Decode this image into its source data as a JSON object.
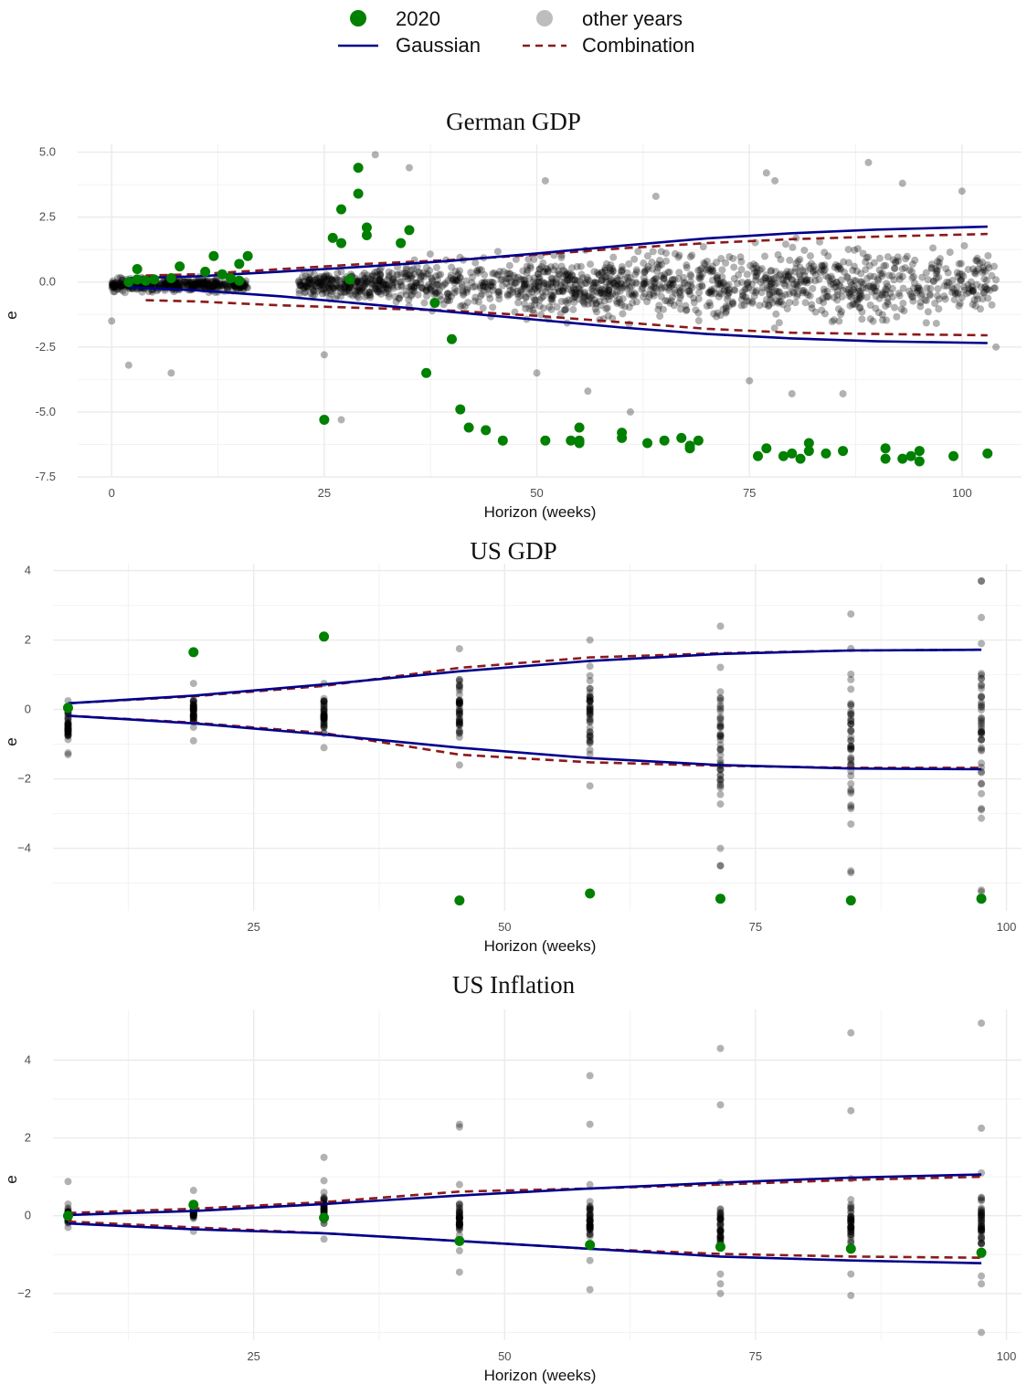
{
  "legend": {
    "items": [
      {
        "label": "2020",
        "kind": "point",
        "color": "#008000"
      },
      {
        "label": "other years",
        "kind": "point",
        "color": "#bdbdbd"
      },
      {
        "label": "Gaussian",
        "kind": "line",
        "color": "#00008b"
      },
      {
        "label": "Combination",
        "kind": "dashed",
        "color": "#8b1a1a"
      }
    ]
  },
  "colors": {
    "highlight": "#008000",
    "other": "#000000",
    "gaussian": "#00008b",
    "combination": "#8b1a1a",
    "grid": "#ebebeb"
  },
  "chart_data": [
    {
      "type": "scatter",
      "title": "German GDP",
      "xlabel": "Horizon (weeks)",
      "ylabel": "e",
      "xlim": [
        -4,
        107
      ],
      "ylim": [
        -7.5,
        5.3
      ],
      "xticks": [
        0,
        25,
        50,
        75,
        100
      ],
      "xtick_labels": [
        "0",
        "25",
        "50",
        "75",
        "100"
      ],
      "yticks": [
        -7.5,
        -5.0,
        -2.5,
        0.0,
        2.5,
        5.0
      ],
      "ytick_labels": [
        "-7.5",
        "-5.0",
        "-2.5",
        "0.0",
        "2.5",
        "5.0"
      ],
      "grid": true,
      "series": [
        {
          "name": "2020",
          "points": [
            [
              2,
              0.0
            ],
            [
              3,
              0.5
            ],
            [
              3,
              0.1
            ],
            [
              4,
              0.05
            ],
            [
              5,
              0.1
            ],
            [
              7,
              0.15
            ],
            [
              8,
              0.6
            ],
            [
              11,
              0.4
            ],
            [
              12,
              1.0
            ],
            [
              13,
              0.3
            ],
            [
              14,
              0.15
            ],
            [
              15,
              0.05
            ],
            [
              15,
              0.7
            ],
            [
              16,
              1.0
            ],
            [
              25,
              -5.3
            ],
            [
              26,
              1.7
            ],
            [
              27,
              2.8
            ],
            [
              27,
              1.5
            ],
            [
              28,
              0.1
            ],
            [
              29,
              4.4
            ],
            [
              29,
              3.4
            ],
            [
              30,
              2.1
            ],
            [
              30,
              1.8
            ],
            [
              34,
              1.5
            ],
            [
              35,
              2.0
            ],
            [
              37,
              -3.5
            ],
            [
              38,
              -0.8
            ],
            [
              40,
              -2.2
            ],
            [
              41,
              -4.9
            ],
            [
              42,
              -5.6
            ],
            [
              44,
              -5.7
            ],
            [
              46,
              -6.1
            ],
            [
              51,
              -6.1
            ],
            [
              54,
              -6.1
            ],
            [
              55,
              -6.1
            ],
            [
              55,
              -5.6
            ],
            [
              55,
              -6.2
            ],
            [
              60,
              -5.8
            ],
            [
              60,
              -6.0
            ],
            [
              63,
              -6.2
            ],
            [
              65,
              -6.1
            ],
            [
              67,
              -6.0
            ],
            [
              68,
              -6.3
            ],
            [
              68,
              -6.4
            ],
            [
              69,
              -6.1
            ],
            [
              76,
              -6.7
            ],
            [
              77,
              -6.4
            ],
            [
              79,
              -6.7
            ],
            [
              80,
              -6.6
            ],
            [
              81,
              -6.8
            ],
            [
              82,
              -6.5
            ],
            [
              82,
              -6.2
            ],
            [
              84,
              -6.6
            ],
            [
              86,
              -6.5
            ],
            [
              91,
              -6.8
            ],
            [
              91,
              -6.4
            ],
            [
              93,
              -6.8
            ],
            [
              94,
              -6.7
            ],
            [
              95,
              -6.9
            ],
            [
              95,
              -6.5
            ],
            [
              99,
              -6.7
            ],
            [
              103,
              -6.6
            ]
          ]
        },
        {
          "name": "other years",
          "x_range": [
            0,
            104
          ],
          "note_points": [
            [
              0,
              -1.5
            ],
            [
              2,
              -3.2
            ],
            [
              7,
              -3.5
            ],
            [
              25,
              -2.8
            ],
            [
              27,
              -5.3
            ],
            [
              31,
              4.9
            ],
            [
              35,
              4.4
            ],
            [
              50,
              -3.5
            ],
            [
              51,
              3.9
            ],
            [
              56,
              -4.2
            ],
            [
              61,
              -5.0
            ],
            [
              64,
              3.3
            ],
            [
              75,
              -3.8
            ],
            [
              77,
              4.2
            ],
            [
              78,
              3.9
            ],
            [
              80,
              -4.3
            ],
            [
              86,
              -4.3
            ],
            [
              89,
              4.6
            ],
            [
              93,
              3.8
            ],
            [
              100,
              3.5
            ],
            [
              103,
              -6.6
            ],
            [
              104,
              -2.5
            ]
          ]
        }
      ],
      "bands": {
        "gaussian": {
          "x": [
            2,
            10,
            20,
            30,
            40,
            50,
            60,
            70,
            80,
            90,
            103
          ],
          "upper": [
            0.15,
            0.22,
            0.4,
            0.6,
            0.82,
            1.1,
            1.4,
            1.68,
            1.88,
            2.02,
            2.13
          ],
          "lower": [
            -0.2,
            -0.32,
            -0.55,
            -0.85,
            -1.15,
            -1.45,
            -1.75,
            -2.0,
            -2.17,
            -2.28,
            -2.35
          ]
        },
        "combination": {
          "x": [
            4,
            10,
            20,
            30,
            40,
            50,
            60,
            70,
            80,
            90,
            103
          ],
          "upper": [
            0.25,
            0.3,
            0.5,
            0.7,
            0.85,
            1.05,
            1.3,
            1.5,
            1.65,
            1.75,
            1.85
          ],
          "lower": [
            -0.7,
            -0.75,
            -0.9,
            -1.0,
            -1.1,
            -1.3,
            -1.55,
            -1.8,
            -1.95,
            -2.0,
            -2.05
          ]
        }
      }
    },
    {
      "type": "scatter",
      "title": "US GDP",
      "xlabel": "Horizon (weeks)",
      "ylabel": "e",
      "xlim": [
        5,
        101.5
      ],
      "ylim": [
        -5.8,
        4.2
      ],
      "xticks": [
        25,
        50,
        75,
        100
      ],
      "xtick_labels": [
        "25",
        "50",
        "75",
        "100"
      ],
      "yticks": [
        -4,
        -2,
        0,
        2,
        4
      ],
      "ytick_labels": [
        "−4",
        "−2",
        "0",
        "2",
        "4"
      ],
      "grid": true,
      "x_positions": [
        6.5,
        19,
        32,
        45.5,
        58.5,
        71.5,
        84.5,
        97.5
      ],
      "series": [
        {
          "name": "2020",
          "points": [
            [
              6.5,
              0.05
            ],
            [
              19,
              1.65
            ],
            [
              32,
              2.1
            ],
            [
              45.5,
              -5.5
            ],
            [
              58.5,
              -5.3
            ],
            [
              71.5,
              -5.45
            ],
            [
              84.5,
              -5.5
            ],
            [
              97.5,
              -5.45
            ]
          ]
        },
        {
          "name": "other years",
          "ranges": [
            [
              6.5,
              -1.3,
              0.25
            ],
            [
              19,
              -0.9,
              0.75
            ],
            [
              32,
              -1.1,
              0.75
            ],
            [
              45.5,
              -1.6,
              1.75
            ],
            [
              58.5,
              -2.2,
              2.0
            ],
            [
              71.5,
              -4.5,
              2.4
            ],
            [
              84.5,
              -4.7,
              2.75
            ],
            [
              97.5,
              -5.2,
              3.7
            ]
          ],
          "outliers": [
            [
              6.5,
              -1.25
            ],
            [
              71.5,
              -4.0
            ],
            [
              71.5,
              -4.5
            ],
            [
              84.5,
              -3.3
            ],
            [
              84.5,
              -4.65
            ],
            [
              97.5,
              -5.25
            ],
            [
              97.5,
              3.7
            ],
            [
              97.5,
              2.65
            ]
          ]
        }
      ],
      "bands": {
        "gaussian": {
          "x": [
            6.5,
            19,
            32,
            45.5,
            58.5,
            71.5,
            84.5,
            97.5
          ],
          "upper": [
            0.18,
            0.4,
            0.72,
            1.1,
            1.4,
            1.6,
            1.7,
            1.72
          ],
          "lower": [
            -0.18,
            -0.4,
            -0.72,
            -1.1,
            -1.4,
            -1.6,
            -1.7,
            -1.72
          ]
        },
        "combination": {
          "x": [
            6.5,
            19,
            32,
            45.5,
            58.5,
            71.5,
            84.5,
            97.5
          ],
          "upper": [
            0.18,
            0.38,
            0.68,
            1.2,
            1.5,
            1.62,
            1.7,
            1.72
          ],
          "lower": [
            -0.18,
            -0.38,
            -0.68,
            -1.3,
            -1.52,
            -1.62,
            -1.68,
            -1.68
          ]
        }
      }
    },
    {
      "type": "scatter",
      "title": "US Inflation",
      "xlabel": "Horizon (weeks)",
      "ylabel": "e",
      "xlim": [
        5,
        101.5
      ],
      "ylim": [
        -3.2,
        5.3
      ],
      "xticks": [
        25,
        50,
        75,
        100
      ],
      "xtick_labels": [
        "25",
        "50",
        "75",
        "100"
      ],
      "yticks": [
        -2,
        0,
        2,
        4
      ],
      "ytick_labels": [
        "−2",
        "0",
        "2",
        "4"
      ],
      "grid": true,
      "x_positions": [
        6.5,
        19,
        32,
        45.5,
        58.5,
        71.5,
        84.5,
        97.5
      ],
      "series": [
        {
          "name": "2020",
          "points": [
            [
              6.5,
              0.0
            ],
            [
              19,
              0.28
            ],
            [
              32,
              -0.05
            ],
            [
              45.5,
              -0.65
            ],
            [
              58.5,
              -0.75
            ],
            [
              71.5,
              -0.8
            ],
            [
              84.5,
              -0.85
            ],
            [
              97.5,
              -0.95
            ]
          ]
        },
        {
          "name": "other years",
          "ranges": [
            [
              6.5,
              -0.3,
              0.3
            ],
            [
              19,
              -0.4,
              0.65
            ],
            [
              32,
              -0.6,
              0.9
            ],
            [
              45.5,
              -0.9,
              0.8
            ],
            [
              58.5,
              -1.15,
              0.8
            ],
            [
              71.5,
              -1.5,
              0.85
            ],
            [
              84.5,
              -1.5,
              0.95
            ],
            [
              97.5,
              -1.55,
              1.1
            ]
          ],
          "outliers": [
            [
              6.5,
              0.88
            ],
            [
              32,
              1.5
            ],
            [
              45.5,
              2.35
            ],
            [
              45.5,
              2.28
            ],
            [
              45.5,
              -1.45
            ],
            [
              58.5,
              3.6
            ],
            [
              58.5,
              2.35
            ],
            [
              58.5,
              -1.9
            ],
            [
              71.5,
              4.3
            ],
            [
              71.5,
              2.85
            ],
            [
              71.5,
              -1.75
            ],
            [
              71.5,
              -2.0
            ],
            [
              84.5,
              4.7
            ],
            [
              84.5,
              2.7
            ],
            [
              84.5,
              -2.05
            ],
            [
              97.5,
              4.95
            ],
            [
              97.5,
              2.25
            ],
            [
              97.5,
              -1.75
            ],
            [
              97.5,
              -3.0
            ]
          ]
        }
      ],
      "bands": {
        "gaussian": {
          "x": [
            6.5,
            19,
            32,
            45.5,
            58.5,
            71.5,
            84.5,
            97.5
          ],
          "upper": [
            0.02,
            0.12,
            0.3,
            0.52,
            0.7,
            0.85,
            0.98,
            1.06
          ],
          "lower": [
            -0.2,
            -0.35,
            -0.45,
            -0.65,
            -0.85,
            -1.05,
            -1.15,
            -1.22
          ]
        },
        "combination": {
          "x": [
            6.5,
            19,
            32,
            45.5,
            58.5,
            71.5,
            84.5,
            97.5
          ],
          "upper": [
            0.07,
            0.18,
            0.35,
            0.62,
            0.7,
            0.8,
            0.92,
            1.0
          ],
          "lower": [
            -0.15,
            -0.3,
            -0.45,
            -0.65,
            -0.85,
            -0.98,
            -1.05,
            -1.08
          ]
        }
      }
    }
  ]
}
